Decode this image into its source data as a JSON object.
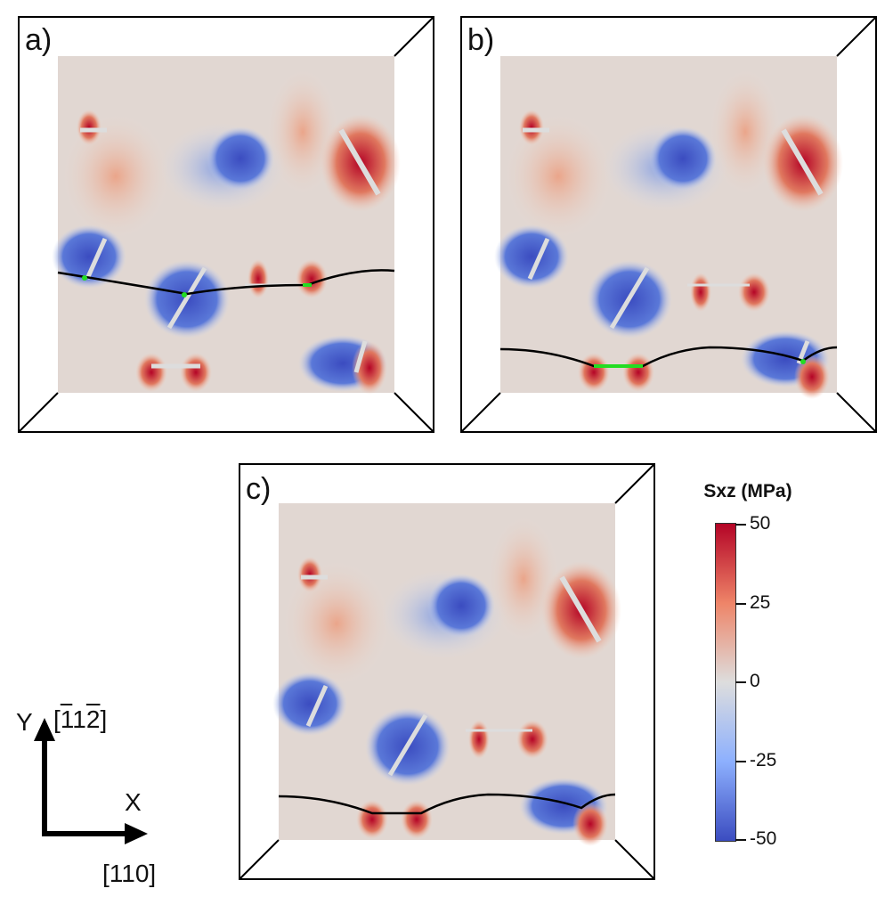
{
  "panels": [
    {
      "label": "a)"
    },
    {
      "label": "b)"
    },
    {
      "label": "c)"
    }
  ],
  "colorbar": {
    "title": "Sxz (MPa)",
    "ticks": [
      "50",
      "25",
      "0",
      "-25",
      "-50"
    ],
    "colors": {
      "max": "#b40426",
      "mid": "#dddddd",
      "min": "#3b4cc0"
    }
  },
  "axes": {
    "y_label": "Y",
    "y_direction": "[đ12]",
    "x_label": "X",
    "x_direction": "[110]"
  },
  "legend_colors": {
    "dislocation_line": "#000000",
    "highlight": "#22dd22",
    "precipitate": "#dddddd"
  }
}
